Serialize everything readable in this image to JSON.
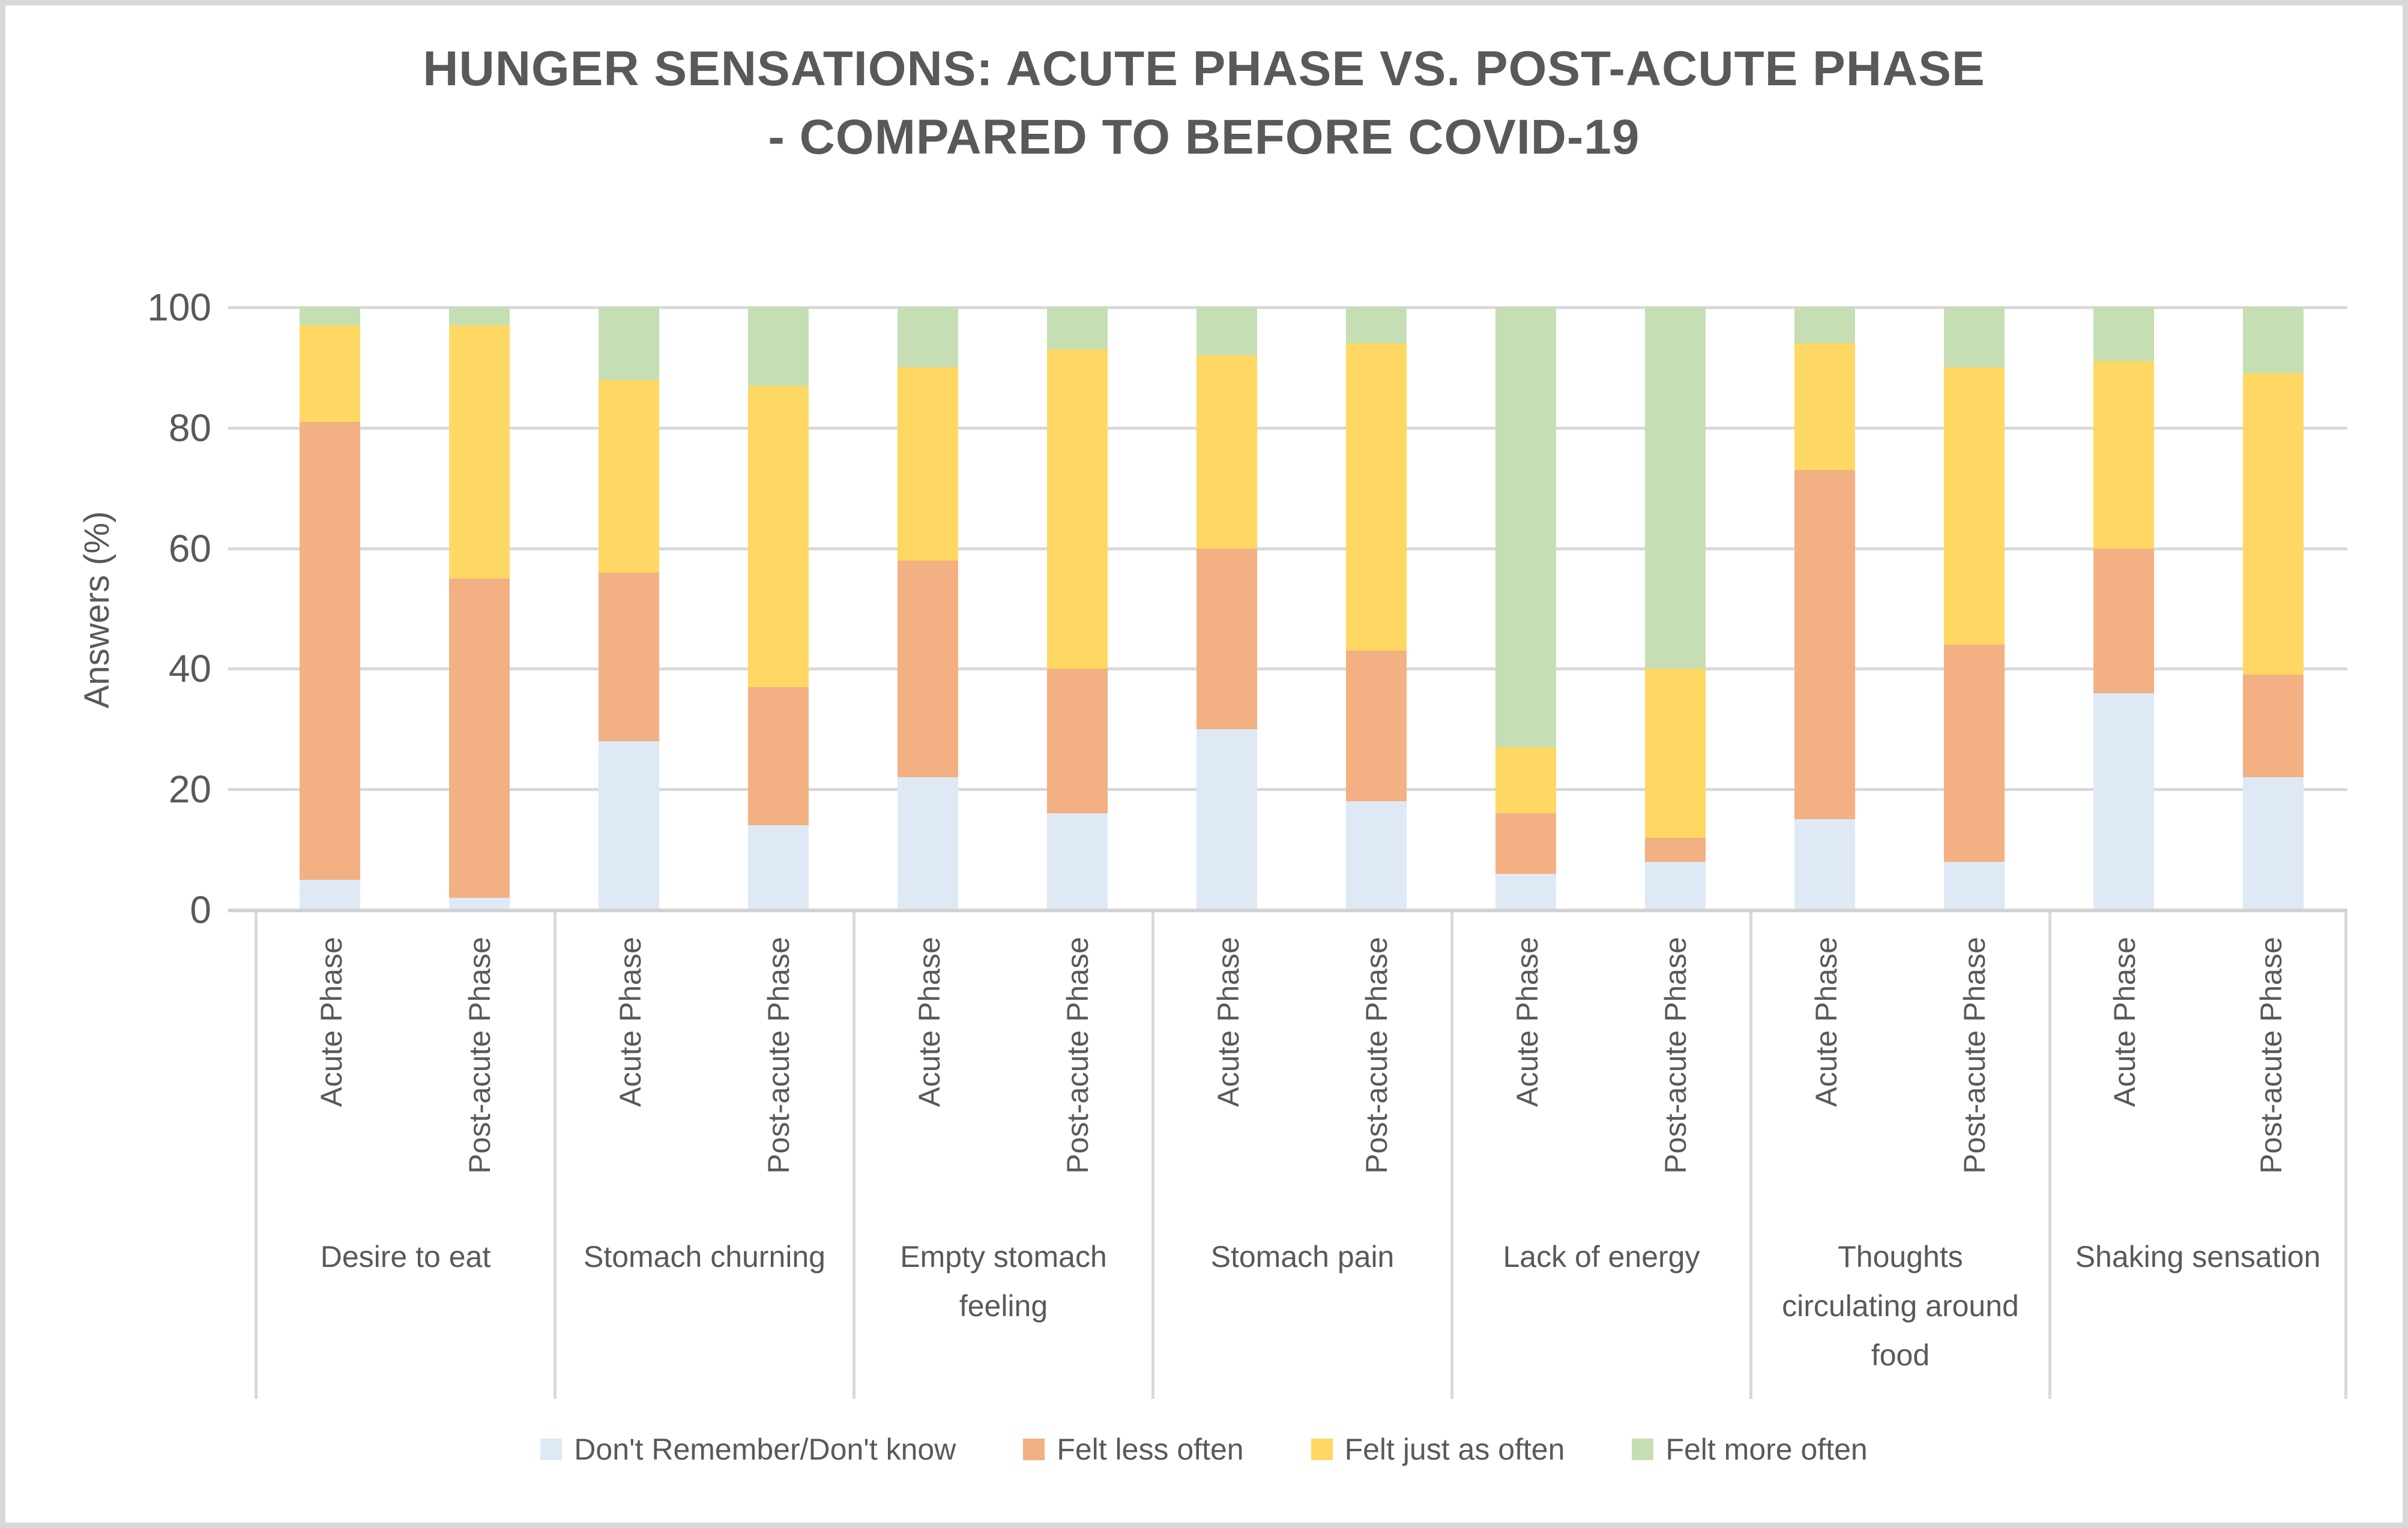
{
  "title": {
    "line1": "HUNGER SENSATIONS: ACUTE PHASE VS. POST-ACUTE PHASE",
    "line2": "- COMPARED TO BEFORE COVID-19"
  },
  "y_axis": {
    "label": "Answers (%)",
    "ticks": [
      100,
      80,
      60,
      40,
      20,
      0
    ]
  },
  "colors": {
    "dont_remember": "#DEE9F5",
    "felt_less_often": "#F3B083",
    "felt_just_as_often": "#FED863",
    "felt_more_often": "#C6DEB4",
    "gridline": "#D9D9D9",
    "text": "#595959"
  },
  "chart_data": {
    "type": "bar",
    "subtype": "stacked-100-percent",
    "title": "HUNGER SENSATIONS: ACUTE PHASE VS. POST-ACUTE PHASE - COMPARED TO BEFORE COVID-19",
    "xlabel": "",
    "ylabel": "Answers (%)",
    "ylim": [
      0,
      100
    ],
    "grid": true,
    "legend_position": "bottom",
    "bars_per_category": [
      "Acute Phase",
      "Post-acute Phase"
    ],
    "categories": [
      {
        "name": "Desire to eat",
        "lines": [
          "Desire to eat"
        ]
      },
      {
        "name": "Stomach churning",
        "lines": [
          "Stomach churning"
        ]
      },
      {
        "name": "Empty stomach feeling",
        "lines": [
          "Empty stomach",
          "feeling"
        ]
      },
      {
        "name": "Stomach pain",
        "lines": [
          "Stomach pain"
        ]
      },
      {
        "name": "Lack of energy",
        "lines": [
          "Lack of energy"
        ]
      },
      {
        "name": "Thoughts circulating around food",
        "lines": [
          "Thoughts",
          "circulating around",
          "food"
        ]
      },
      {
        "name": "Shaking sensation",
        "lines": [
          "Shaking sensation"
        ]
      }
    ],
    "series": [
      {
        "name": "Don't Remember/Don't know",
        "color": "#DEE9F5",
        "values": [
          5,
          2,
          28,
          14,
          22,
          16,
          30,
          18,
          6,
          8,
          15,
          8,
          36,
          22
        ]
      },
      {
        "name": "Felt less often",
        "color": "#F3B083",
        "values": [
          76,
          53,
          28,
          23,
          36,
          24,
          30,
          25,
          10,
          4,
          58,
          36,
          24,
          17
        ]
      },
      {
        "name": "Felt just as often",
        "color": "#FED863",
        "values": [
          16,
          42,
          32,
          50,
          32,
          53,
          32,
          51,
          11,
          28,
          21,
          46,
          31,
          50
        ]
      },
      {
        "name": "Felt more often",
        "color": "#C6DEB4",
        "values": [
          3,
          3,
          12,
          13,
          10,
          7,
          8,
          6,
          73,
          60,
          6,
          10,
          9,
          11
        ]
      }
    ],
    "values_note": "values are percentages; order of values array = [Desire to eat Acute, Desire to eat Post-acute, Stomach churning Acute, Stomach churning Post-acute, Empty stomach feeling Acute, Empty stomach feeling Post-acute, Stomach pain Acute, Stomach pain Post-acute, Lack of energy Acute, Lack of energy Post-acute, Thoughts circulating around food Acute, Thoughts circulating around food Post-acute, Shaking sensation Acute, Shaking sensation Post-acute]"
  }
}
